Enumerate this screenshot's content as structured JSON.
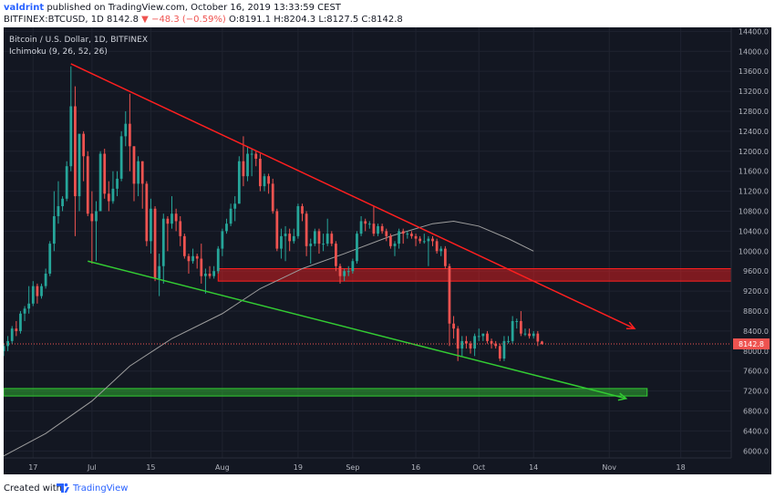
{
  "header": {
    "username": "valdrint",
    "published_text": "published on TradingView.com, October 16, 2019 13:33:59 CEST",
    "symbol": "BITFINEX:BTCUSD, 1D",
    "last": "8142.8",
    "change": "−48.3 (−0.59%)",
    "ohlc": "O:8191.1 H:8204.3 L:8127.5 C:8142.8"
  },
  "legend": {
    "title": "Bitcoin / U.S. Dollar, 1D, BITFINEX",
    "indicator": "Ichimoku (9, 26, 52, 26)"
  },
  "footer": {
    "created_with": "Created with",
    "brand": "TradingView"
  },
  "colors": {
    "background": "#131722",
    "up": "#26a69a",
    "down": "#ef5350",
    "resistance": "#ff1f1f",
    "support": "#33cc33",
    "ma": "#9e9e9e",
    "grid": "#1f2330",
    "axis_text": "#b2b5be"
  },
  "chart_data": {
    "type": "candlestick",
    "title": "Bitcoin / U.S. Dollar, 1D, BITFINEX",
    "ylim": [
      5860,
      14480
    ],
    "y_ticks": [
      6000,
      6400,
      6800,
      7200,
      7600,
      8000,
      8400,
      8800,
      9200,
      9600,
      10000,
      10400,
      10800,
      11200,
      11600,
      12000,
      12400,
      12800,
      13200,
      13600,
      14000,
      14400
    ],
    "x_ticks": [
      {
        "date": "2019-06-17",
        "label": "17"
      },
      {
        "date": "2019-07-01",
        "label": "Jul"
      },
      {
        "date": "2019-07-15",
        "label": "15"
      },
      {
        "date": "2019-08-01",
        "label": "Aug"
      },
      {
        "date": "2019-08-19",
        "label": "19"
      },
      {
        "date": "2019-09-01",
        "label": "Sep"
      },
      {
        "date": "2019-09-16",
        "label": "16"
      },
      {
        "date": "2019-10-01",
        "label": "Oct"
      },
      {
        "date": "2019-10-14",
        "label": "14"
      },
      {
        "date": "2019-11-01",
        "label": "Nov"
      },
      {
        "date": "2019-11-18",
        "label": "18"
      }
    ],
    "x_range": [
      "2019-06-10",
      "2019-11-30"
    ],
    "last_price": 8142.8,
    "last_price_label": "8142.8",
    "candles": [
      {
        "date": "2019-06-10",
        "o": 8000,
        "h": 8150,
        "l": 7900,
        "c": 8100
      },
      {
        "date": "2019-06-11",
        "o": 8100,
        "h": 8300,
        "l": 8000,
        "c": 8200
      },
      {
        "date": "2019-06-12",
        "o": 8200,
        "h": 8500,
        "l": 8150,
        "c": 8450
      },
      {
        "date": "2019-06-13",
        "o": 8450,
        "h": 8600,
        "l": 8300,
        "c": 8400
      },
      {
        "date": "2019-06-14",
        "o": 8400,
        "h": 8800,
        "l": 8350,
        "c": 8750
      },
      {
        "date": "2019-06-15",
        "o": 8750,
        "h": 8900,
        "l": 8600,
        "c": 8850
      },
      {
        "date": "2019-06-16",
        "o": 8850,
        "h": 9300,
        "l": 8750,
        "c": 8950
      },
      {
        "date": "2019-06-17",
        "o": 8950,
        "h": 9400,
        "l": 8900,
        "c": 9300
      },
      {
        "date": "2019-06-18",
        "o": 9300,
        "h": 9350,
        "l": 8950,
        "c": 9100
      },
      {
        "date": "2019-06-19",
        "o": 9100,
        "h": 9350,
        "l": 9050,
        "c": 9300
      },
      {
        "date": "2019-06-20",
        "o": 9300,
        "h": 9650,
        "l": 9250,
        "c": 9550
      },
      {
        "date": "2019-06-21",
        "o": 9550,
        "h": 10200,
        "l": 9500,
        "c": 10150
      },
      {
        "date": "2019-06-22",
        "o": 10150,
        "h": 11200,
        "l": 10000,
        "c": 10700
      },
      {
        "date": "2019-06-23",
        "o": 10700,
        "h": 11400,
        "l": 10550,
        "c": 10900
      },
      {
        "date": "2019-06-24",
        "o": 10900,
        "h": 11100,
        "l": 10800,
        "c": 11050
      },
      {
        "date": "2019-06-25",
        "o": 11050,
        "h": 11800,
        "l": 11000,
        "c": 11700
      },
      {
        "date": "2019-06-26",
        "o": 11700,
        "h": 13700,
        "l": 11600,
        "c": 12900
      },
      {
        "date": "2019-06-27",
        "o": 12900,
        "h": 13300,
        "l": 10300,
        "c": 11100
      },
      {
        "date": "2019-06-28",
        "o": 11100,
        "h": 12300,
        "l": 10800,
        "c": 12350
      },
      {
        "date": "2019-06-29",
        "o": 12350,
        "h": 12400,
        "l": 11400,
        "c": 11900
      },
      {
        "date": "2019-06-30",
        "o": 11900,
        "h": 12000,
        "l": 10700,
        "c": 10750
      },
      {
        "date": "2019-07-01",
        "o": 10750,
        "h": 11200,
        "l": 9750,
        "c": 10600
      },
      {
        "date": "2019-07-02",
        "o": 10600,
        "h": 11000,
        "l": 9800,
        "c": 10800
      },
      {
        "date": "2019-07-03",
        "o": 10800,
        "h": 12000,
        "l": 10800,
        "c": 11950
      },
      {
        "date": "2019-07-04",
        "o": 11950,
        "h": 12050,
        "l": 11050,
        "c": 11150
      },
      {
        "date": "2019-07-05",
        "o": 11150,
        "h": 11400,
        "l": 10800,
        "c": 11000
      },
      {
        "date": "2019-07-06",
        "o": 11000,
        "h": 11600,
        "l": 10950,
        "c": 11250
      },
      {
        "date": "2019-07-07",
        "o": 11250,
        "h": 11600,
        "l": 11100,
        "c": 11450
      },
      {
        "date": "2019-07-08",
        "o": 11450,
        "h": 12400,
        "l": 11400,
        "c": 12300
      },
      {
        "date": "2019-07-09",
        "o": 12300,
        "h": 12800,
        "l": 12100,
        "c": 12550
      },
      {
        "date": "2019-07-10",
        "o": 12550,
        "h": 13150,
        "l": 11600,
        "c": 12100
      },
      {
        "date": "2019-07-11",
        "o": 12100,
        "h": 12100,
        "l": 11000,
        "c": 11350
      },
      {
        "date": "2019-07-12",
        "o": 11350,
        "h": 11900,
        "l": 11100,
        "c": 11800
      },
      {
        "date": "2019-07-13",
        "o": 11800,
        "h": 11800,
        "l": 10850,
        "c": 11350
      },
      {
        "date": "2019-07-14",
        "o": 11350,
        "h": 11400,
        "l": 10100,
        "c": 10200
      },
      {
        "date": "2019-07-15",
        "o": 10200,
        "h": 11050,
        "l": 9950,
        "c": 10850
      },
      {
        "date": "2019-07-16",
        "o": 10850,
        "h": 10900,
        "l": 9400,
        "c": 9450
      },
      {
        "date": "2019-07-17",
        "o": 9450,
        "h": 9950,
        "l": 9100,
        "c": 9700
      },
      {
        "date": "2019-07-18",
        "o": 9700,
        "h": 10750,
        "l": 9350,
        "c": 10650
      },
      {
        "date": "2019-07-19",
        "o": 10650,
        "h": 10700,
        "l": 10000,
        "c": 10550
      },
      {
        "date": "2019-07-20",
        "o": 10550,
        "h": 11100,
        "l": 10450,
        "c": 10750
      },
      {
        "date": "2019-07-21",
        "o": 10750,
        "h": 10850,
        "l": 10400,
        "c": 10600
      },
      {
        "date": "2019-07-22",
        "o": 10600,
        "h": 10700,
        "l": 10100,
        "c": 10300
      },
      {
        "date": "2019-07-23",
        "o": 10300,
        "h": 10350,
        "l": 9850,
        "c": 9900
      },
      {
        "date": "2019-07-24",
        "o": 9900,
        "h": 9950,
        "l": 9550,
        "c": 9800
      },
      {
        "date": "2019-07-25",
        "o": 9800,
        "h": 10050,
        "l": 9750,
        "c": 9900
      },
      {
        "date": "2019-07-26",
        "o": 9900,
        "h": 9950,
        "l": 9650,
        "c": 9850
      },
      {
        "date": "2019-07-27",
        "o": 9850,
        "h": 10150,
        "l": 9350,
        "c": 9500
      },
      {
        "date": "2019-07-28",
        "o": 9500,
        "h": 9650,
        "l": 9150,
        "c": 9550
      },
      {
        "date": "2019-07-29",
        "o": 9550,
        "h": 9700,
        "l": 9450,
        "c": 9500
      },
      {
        "date": "2019-07-30",
        "o": 9500,
        "h": 9700,
        "l": 9450,
        "c": 9600
      },
      {
        "date": "2019-07-31",
        "o": 9600,
        "h": 10100,
        "l": 9550,
        "c": 10050
      },
      {
        "date": "2019-08-01",
        "o": 10050,
        "h": 10450,
        "l": 9900,
        "c": 10400
      },
      {
        "date": "2019-08-02",
        "o": 10400,
        "h": 10650,
        "l": 10350,
        "c": 10550
      },
      {
        "date": "2019-08-03",
        "o": 10550,
        "h": 10950,
        "l": 10500,
        "c": 10850
      },
      {
        "date": "2019-08-04",
        "o": 10850,
        "h": 11100,
        "l": 10600,
        "c": 10950
      },
      {
        "date": "2019-08-05",
        "o": 10950,
        "h": 11900,
        "l": 10950,
        "c": 11800
      },
      {
        "date": "2019-08-06",
        "o": 11800,
        "h": 12300,
        "l": 11300,
        "c": 11500
      },
      {
        "date": "2019-08-07",
        "o": 11500,
        "h": 12100,
        "l": 11400,
        "c": 11950
      },
      {
        "date": "2019-08-08",
        "o": 11950,
        "h": 12050,
        "l": 11500,
        "c": 11950
      },
      {
        "date": "2019-08-09",
        "o": 11950,
        "h": 12000,
        "l": 11700,
        "c": 11850
      },
      {
        "date": "2019-08-10",
        "o": 11850,
        "h": 11950,
        "l": 11200,
        "c": 11300
      },
      {
        "date": "2019-08-11",
        "o": 11300,
        "h": 11550,
        "l": 11200,
        "c": 11500
      },
      {
        "date": "2019-08-12",
        "o": 11500,
        "h": 11550,
        "l": 11150,
        "c": 11350
      },
      {
        "date": "2019-08-13",
        "o": 11350,
        "h": 11450,
        "l": 10750,
        "c": 10800
      },
      {
        "date": "2019-08-14",
        "o": 10800,
        "h": 10850,
        "l": 10000,
        "c": 10050
      },
      {
        "date": "2019-08-15",
        "o": 10050,
        "h": 10450,
        "l": 9850,
        "c": 10300
      },
      {
        "date": "2019-08-16",
        "o": 10300,
        "h": 10500,
        "l": 9800,
        "c": 10350
      },
      {
        "date": "2019-08-17",
        "o": 10350,
        "h": 10450,
        "l": 10000,
        "c": 10200
      },
      {
        "date": "2019-08-18",
        "o": 10200,
        "h": 10450,
        "l": 10150,
        "c": 10300
      },
      {
        "date": "2019-08-19",
        "o": 10300,
        "h": 10950,
        "l": 10250,
        "c": 10900
      },
      {
        "date": "2019-08-20",
        "o": 10900,
        "h": 10950,
        "l": 10600,
        "c": 10750
      },
      {
        "date": "2019-08-21",
        "o": 10750,
        "h": 10800,
        "l": 9900,
        "c": 10100
      },
      {
        "date": "2019-08-22",
        "o": 10100,
        "h": 10250,
        "l": 9750,
        "c": 10150
      },
      {
        "date": "2019-08-23",
        "o": 10150,
        "h": 10450,
        "l": 10100,
        "c": 10400
      },
      {
        "date": "2019-08-24",
        "o": 10400,
        "h": 10450,
        "l": 9950,
        "c": 10150
      },
      {
        "date": "2019-08-25",
        "o": 10150,
        "h": 10350,
        "l": 10000,
        "c": 10150
      },
      {
        "date": "2019-08-26",
        "o": 10150,
        "h": 10650,
        "l": 10100,
        "c": 10350
      },
      {
        "date": "2019-08-27",
        "o": 10350,
        "h": 10400,
        "l": 10100,
        "c": 10150
      },
      {
        "date": "2019-08-28",
        "o": 10150,
        "h": 10200,
        "l": 9600,
        "c": 9700
      },
      {
        "date": "2019-08-29",
        "o": 9700,
        "h": 9750,
        "l": 9350,
        "c": 9500
      },
      {
        "date": "2019-08-30",
        "o": 9500,
        "h": 9650,
        "l": 9400,
        "c": 9600
      },
      {
        "date": "2019-08-31",
        "o": 9600,
        "h": 9700,
        "l": 9500,
        "c": 9600
      },
      {
        "date": "2019-09-01",
        "o": 9600,
        "h": 9850,
        "l": 9550,
        "c": 9800
      },
      {
        "date": "2019-09-02",
        "o": 9800,
        "h": 10400,
        "l": 9750,
        "c": 10350
      },
      {
        "date": "2019-09-03",
        "o": 10350,
        "h": 10700,
        "l": 10300,
        "c": 10600
      },
      {
        "date": "2019-09-04",
        "o": 10600,
        "h": 10650,
        "l": 10400,
        "c": 10550
      },
      {
        "date": "2019-09-05",
        "o": 10550,
        "h": 10600,
        "l": 10450,
        "c": 10550
      },
      {
        "date": "2019-09-06",
        "o": 10550,
        "h": 10900,
        "l": 10300,
        "c": 10350
      },
      {
        "date": "2019-09-07",
        "o": 10350,
        "h": 10550,
        "l": 10300,
        "c": 10500
      },
      {
        "date": "2019-09-08",
        "o": 10500,
        "h": 10550,
        "l": 10350,
        "c": 10400
      },
      {
        "date": "2019-09-09",
        "o": 10400,
        "h": 10450,
        "l": 10200,
        "c": 10300
      },
      {
        "date": "2019-09-10",
        "o": 10300,
        "h": 10350,
        "l": 10050,
        "c": 10100
      },
      {
        "date": "2019-09-11",
        "o": 10100,
        "h": 10200,
        "l": 9900,
        "c": 10150
      },
      {
        "date": "2019-09-12",
        "o": 10150,
        "h": 10450,
        "l": 10050,
        "c": 10400
      },
      {
        "date": "2019-09-13",
        "o": 10400,
        "h": 10450,
        "l": 10150,
        "c": 10350
      },
      {
        "date": "2019-09-14",
        "o": 10350,
        "h": 10400,
        "l": 10250,
        "c": 10350
      },
      {
        "date": "2019-09-15",
        "o": 10350,
        "h": 10400,
        "l": 10250,
        "c": 10300
      },
      {
        "date": "2019-09-16",
        "o": 10300,
        "h": 10350,
        "l": 10100,
        "c": 10250
      },
      {
        "date": "2019-09-17",
        "o": 10250,
        "h": 10300,
        "l": 10150,
        "c": 10200
      },
      {
        "date": "2019-09-18",
        "o": 10200,
        "h": 10350,
        "l": 10150,
        "c": 10200
      },
      {
        "date": "2019-09-19",
        "o": 10200,
        "h": 10300,
        "l": 9700,
        "c": 10250
      },
      {
        "date": "2019-09-20",
        "o": 10250,
        "h": 10300,
        "l": 10100,
        "c": 10200
      },
      {
        "date": "2019-09-21",
        "o": 10200,
        "h": 10250,
        "l": 9950,
        "c": 10000
      },
      {
        "date": "2019-09-22",
        "o": 10000,
        "h": 10100,
        "l": 9900,
        "c": 10050
      },
      {
        "date": "2019-09-23",
        "o": 10050,
        "h": 10100,
        "l": 9650,
        "c": 9700
      },
      {
        "date": "2019-09-24",
        "o": 9700,
        "h": 9750,
        "l": 8100,
        "c": 8550
      },
      {
        "date": "2019-09-25",
        "o": 8550,
        "h": 8700,
        "l": 8250,
        "c": 8450
      },
      {
        "date": "2019-09-26",
        "o": 8450,
        "h": 8500,
        "l": 7800,
        "c": 8050
      },
      {
        "date": "2019-09-27",
        "o": 8050,
        "h": 8300,
        "l": 7900,
        "c": 8200
      },
      {
        "date": "2019-09-28",
        "o": 8200,
        "h": 8300,
        "l": 8050,
        "c": 8150
      },
      {
        "date": "2019-09-29",
        "o": 8150,
        "h": 8200,
        "l": 7950,
        "c": 8050
      },
      {
        "date": "2019-09-30",
        "o": 8050,
        "h": 8350,
        "l": 7900,
        "c": 8300
      },
      {
        "date": "2019-10-01",
        "o": 8300,
        "h": 8450,
        "l": 8200,
        "c": 8300
      },
      {
        "date": "2019-10-02",
        "o": 8300,
        "h": 8350,
        "l": 8200,
        "c": 8350
      },
      {
        "date": "2019-10-03",
        "o": 8350,
        "h": 8400,
        "l": 8150,
        "c": 8200
      },
      {
        "date": "2019-10-04",
        "o": 8200,
        "h": 8250,
        "l": 8050,
        "c": 8150
      },
      {
        "date": "2019-10-05",
        "o": 8150,
        "h": 8200,
        "l": 8050,
        "c": 8100
      },
      {
        "date": "2019-10-06",
        "o": 8100,
        "h": 8150,
        "l": 7800,
        "c": 7850
      },
      {
        "date": "2019-10-07",
        "o": 7850,
        "h": 8300,
        "l": 7800,
        "c": 8200
      },
      {
        "date": "2019-10-08",
        "o": 8200,
        "h": 8300,
        "l": 8150,
        "c": 8200
      },
      {
        "date": "2019-10-09",
        "o": 8200,
        "h": 8700,
        "l": 8150,
        "c": 8600
      },
      {
        "date": "2019-10-10",
        "o": 8600,
        "h": 8650,
        "l": 8450,
        "c": 8600
      },
      {
        "date": "2019-10-11",
        "o": 8600,
        "h": 8800,
        "l": 8300,
        "c": 8350
      },
      {
        "date": "2019-10-12",
        "o": 8350,
        "h": 8450,
        "l": 8300,
        "c": 8350
      },
      {
        "date": "2019-10-13",
        "o": 8350,
        "h": 8450,
        "l": 8250,
        "c": 8300
      },
      {
        "date": "2019-10-14",
        "o": 8300,
        "h": 8400,
        "l": 8250,
        "c": 8350
      },
      {
        "date": "2019-10-15",
        "o": 8350,
        "h": 8400,
        "l": 8100,
        "c": 8190
      },
      {
        "date": "2019-10-16",
        "o": 8191.1,
        "h": 8204.3,
        "l": 8127.5,
        "c": 8142.8
      }
    ],
    "ma_line": [
      {
        "date": "2019-06-10",
        "v": 5900
      },
      {
        "date": "2019-06-20",
        "v": 6350
      },
      {
        "date": "2019-07-01",
        "v": 7000
      },
      {
        "date": "2019-07-10",
        "v": 7700
      },
      {
        "date": "2019-07-20",
        "v": 8250
      },
      {
        "date": "2019-08-01",
        "v": 8750
      },
      {
        "date": "2019-08-10",
        "v": 9250
      },
      {
        "date": "2019-08-20",
        "v": 9650
      },
      {
        "date": "2019-08-30",
        "v": 9950
      },
      {
        "date": "2019-09-10",
        "v": 10300
      },
      {
        "date": "2019-09-20",
        "v": 10550
      },
      {
        "date": "2019-09-25",
        "v": 10600
      },
      {
        "date": "2019-10-01",
        "v": 10500
      },
      {
        "date": "2019-10-08",
        "v": 10250
      },
      {
        "date": "2019-10-14",
        "v": 10000
      }
    ],
    "trendlines": [
      {
        "name": "",
        "color": "#ff1f1f",
        "from": {
          "date": "2019-06-26",
          "v": 13750
        },
        "to": {
          "date": "2019-11-07",
          "v": 8450
        },
        "arrow": true
      },
      {
        "name": "",
        "color": "#33cc33",
        "from": {
          "date": "2019-06-30",
          "v": 9800
        },
        "to": {
          "date": "2019-11-05",
          "v": 7050
        },
        "arrow": true
      }
    ],
    "zones": [
      {
        "color": "#ff1f1f",
        "from_date": "2019-07-31",
        "to_date": "2019-11-30",
        "low": 9400,
        "high": 9650
      },
      {
        "color": "#33cc33",
        "from_date": "2019-06-10",
        "to_date": "2019-11-10",
        "low": 7100,
        "high": 7250
      }
    ]
  }
}
